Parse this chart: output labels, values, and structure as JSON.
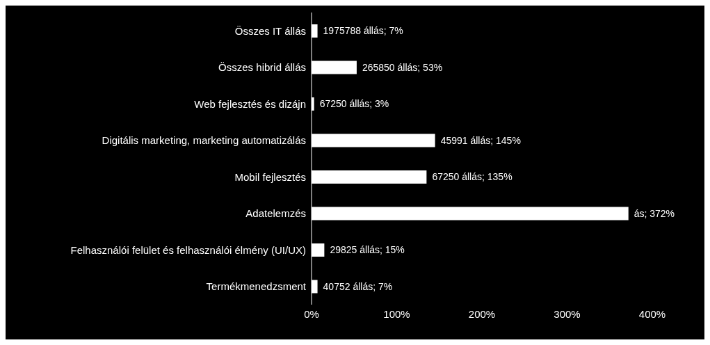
{
  "chart_data": {
    "type": "bar",
    "orientation": "horizontal",
    "categories": [
      "Összes IT állás",
      "Összes hibrid állás",
      "Web fejlesztés és dizájn",
      "Digitális marketing, marketing automatizálás",
      "Mobil fejlesztés",
      "Adatelemzés",
      "Felhasználói felület és felhasználói élmény (UI/UX)",
      "Termékmenedzsment"
    ],
    "values": [
      7,
      53,
      3,
      145,
      135,
      372,
      15,
      7
    ],
    "value_labels": [
      "1975788 állás; 7%",
      "265850 állás; 53%",
      "67250 állás; 3%",
      "45991 állás; 145%",
      "67250 állás; 135%",
      "ás; 372%",
      "29825 állás; 15%",
      "40752 állás; 7%"
    ],
    "color": "#ffffff",
    "xlim": [
      0,
      400
    ],
    "xticks": [
      {
        "value": 0,
        "label": "0%"
      },
      {
        "value": 100,
        "label": "100%"
      },
      {
        "value": 200,
        "label": "200%"
      },
      {
        "value": 300,
        "label": "300%"
      },
      {
        "value": 400,
        "label": "400%"
      }
    ]
  }
}
